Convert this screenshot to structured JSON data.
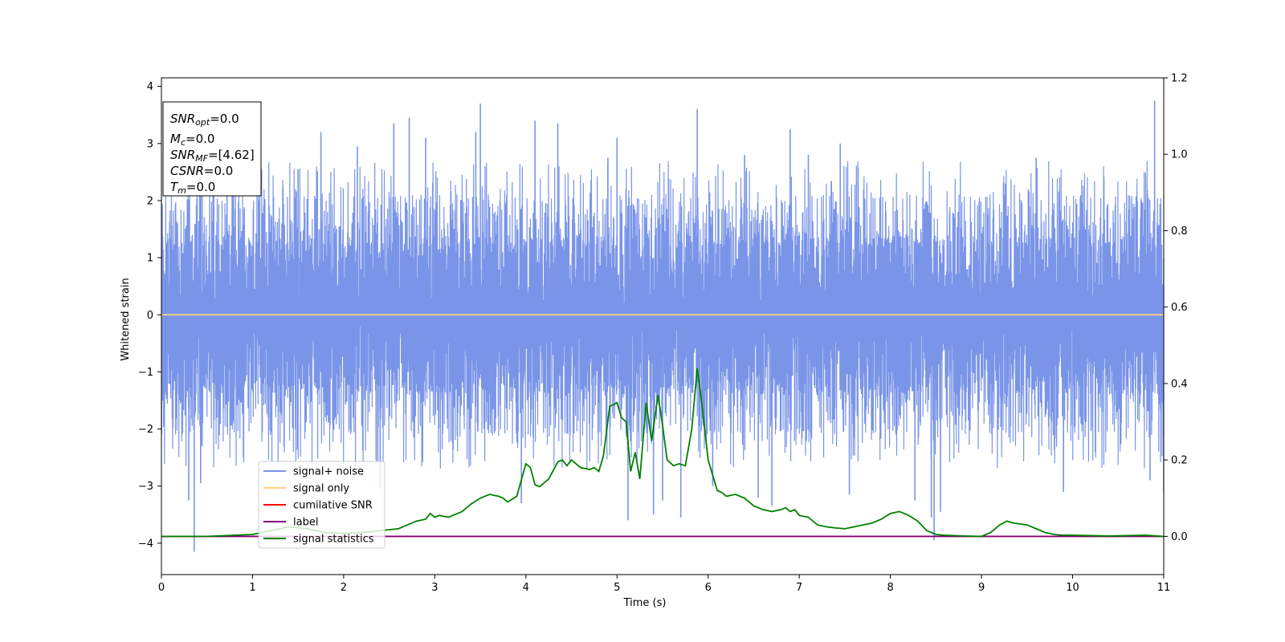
{
  "chart_data": {
    "type": "line",
    "xlabel": "Time (s)",
    "ylabel": "Whitened strain",
    "xlim": [
      0,
      11
    ],
    "ylim": [
      -4.55,
      4.15
    ],
    "y2lim": [
      -0.1,
      1.2
    ],
    "xticks": [
      "0",
      "1",
      "2",
      "3",
      "4",
      "5",
      "6",
      "7",
      "8",
      "9",
      "10",
      "11"
    ],
    "yticks": [
      "−4",
      "−3",
      "−2",
      "−1",
      "0",
      "1",
      "2",
      "3",
      "4"
    ],
    "y2ticks": [
      "0.0",
      "0.2",
      "0.4",
      "0.6",
      "0.8",
      "1.0",
      "1.2"
    ],
    "info_box": [
      {
        "base": "SNR",
        "sub": "opt",
        "value": "=0.0"
      },
      {
        "base": "M",
        "sub": "c",
        "value": "=0.0"
      },
      {
        "base": "SNR",
        "sub": "MF",
        "value": "=[4.62]"
      },
      {
        "base": "CSNR",
        "sub": "",
        "value": "=0.0"
      },
      {
        "base": "T",
        "sub": "m",
        "value": "=0.0"
      }
    ],
    "legend": {
      "placement": "lower-left",
      "entries": [
        {
          "label": "signal+ noise",
          "color": "#7a95e8"
        },
        {
          "label": "signal only",
          "color": "#ffd27f"
        },
        {
          "label": "cumilative SNR",
          "color": "#ff0000"
        },
        {
          "label": "label",
          "color": "#800080"
        },
        {
          "label": "signal statistics",
          "color": "#008000"
        }
      ]
    },
    "series": [
      {
        "name": "signal+ noise",
        "axis": "left",
        "color": "#7a95e8",
        "description_values": {
          "band_pos": [
            1.2,
            2.6
          ],
          "band_neg": [
            -1.2,
            -2.6
          ]
        },
        "spikes": [
          {
            "x": 0.36,
            "y": -4.15
          },
          {
            "x": 0.3,
            "y": -3.25
          },
          {
            "x": 0.43,
            "y": -2.95
          },
          {
            "x": 1.5,
            "y": 2.55
          },
          {
            "x": 1.75,
            "y": 3.2
          },
          {
            "x": 2.15,
            "y": 2.95
          },
          {
            "x": 2.4,
            "y": -3.05
          },
          {
            "x": 2.55,
            "y": 3.35
          },
          {
            "x": 2.72,
            "y": 3.45
          },
          {
            "x": 3.45,
            "y": 3.2
          },
          {
            "x": 3.5,
            "y": 3.7
          },
          {
            "x": 4.1,
            "y": 3.4
          },
          {
            "x": 4.35,
            "y": 3.35
          },
          {
            "x": 4.9,
            "y": 2.75
          },
          {
            "x": 5.0,
            "y": 3.1
          },
          {
            "x": 5.12,
            "y": -3.6
          },
          {
            "x": 5.4,
            "y": -3.5
          },
          {
            "x": 5.5,
            "y": -3.25
          },
          {
            "x": 5.88,
            "y": 3.6
          },
          {
            "x": 5.7,
            "y": -3.55
          },
          {
            "x": 6.05,
            "y": -3.0
          },
          {
            "x": 6.4,
            "y": 2.8
          },
          {
            "x": 6.55,
            "y": -3.2
          },
          {
            "x": 6.7,
            "y": -3.35
          },
          {
            "x": 6.9,
            "y": 3.25
          },
          {
            "x": 7.1,
            "y": 2.8
          },
          {
            "x": 7.45,
            "y": 3.0
          },
          {
            "x": 7.55,
            "y": -3.15
          },
          {
            "x": 8.27,
            "y": -3.25
          },
          {
            "x": 8.45,
            "y": -3.55
          },
          {
            "x": 8.48,
            "y": -3.95
          },
          {
            "x": 8.55,
            "y": -3.45
          },
          {
            "x": 9.6,
            "y": 2.75
          },
          {
            "x": 9.9,
            "y": -3.1
          },
          {
            "x": 10.9,
            "y": 3.75
          },
          {
            "x": 10.85,
            "y": -2.9
          },
          {
            "x": 11.0,
            "y": -3.1
          },
          {
            "x": 0.72,
            "y": 3.05
          },
          {
            "x": 3.95,
            "y": -3.3
          },
          {
            "x": 2.9,
            "y": 3.1
          }
        ]
      },
      {
        "name": "signal only",
        "axis": "left",
        "color": "#ffd27f",
        "x": [
          0,
          11
        ],
        "y": [
          0,
          0
        ]
      },
      {
        "name": "cumilative SNR",
        "axis": "right",
        "color": "#ff0000",
        "x": [
          0,
          11
        ],
        "y": [
          0,
          0
        ]
      },
      {
        "name": "label",
        "axis": "right",
        "color": "#800080",
        "x": [
          0,
          11
        ],
        "y": [
          0,
          0
        ]
      },
      {
        "name": "signal statistics",
        "axis": "right",
        "color": "#008000",
        "x": [
          0,
          0.5,
          1.0,
          1.2,
          1.4,
          1.6,
          1.8,
          2.0,
          2.2,
          2.4,
          2.6,
          2.7,
          2.8,
          2.9,
          2.95,
          3.0,
          3.05,
          3.15,
          3.25,
          3.3,
          3.4,
          3.5,
          3.6,
          3.7,
          3.75,
          3.8,
          3.9,
          4.0,
          4.05,
          4.1,
          4.15,
          4.25,
          4.35,
          4.4,
          4.45,
          4.5,
          4.6,
          4.7,
          4.75,
          4.8,
          4.85,
          4.92,
          5.0,
          5.05,
          5.1,
          5.15,
          5.2,
          5.25,
          5.32,
          5.38,
          5.45,
          5.5,
          5.55,
          5.62,
          5.68,
          5.75,
          5.82,
          5.88,
          5.93,
          6.0,
          6.1,
          6.15,
          6.2,
          6.3,
          6.4,
          6.5,
          6.6,
          6.7,
          6.8,
          6.85,
          6.9,
          6.95,
          7.0,
          7.1,
          7.2,
          7.3,
          7.4,
          7.5,
          7.6,
          7.7,
          7.8,
          7.9,
          8.0,
          8.1,
          8.2,
          8.3,
          8.4,
          8.5,
          8.6,
          8.8,
          9.0,
          9.1,
          9.2,
          9.28,
          9.35,
          9.5,
          9.6,
          9.7,
          9.8,
          9.9,
          10.0,
          10.2,
          10.4,
          10.6,
          10.8,
          11.0
        ],
        "y": [
          0.0,
          0.0,
          0.005,
          0.015,
          0.025,
          0.02,
          0.01,
          0.008,
          0.01,
          0.015,
          0.02,
          0.03,
          0.04,
          0.045,
          0.06,
          0.05,
          0.055,
          0.05,
          0.06,
          0.065,
          0.085,
          0.1,
          0.11,
          0.105,
          0.1,
          0.09,
          0.105,
          0.19,
          0.18,
          0.135,
          0.13,
          0.15,
          0.195,
          0.2,
          0.185,
          0.2,
          0.18,
          0.175,
          0.18,
          0.17,
          0.21,
          0.34,
          0.35,
          0.31,
          0.3,
          0.17,
          0.22,
          0.15,
          0.35,
          0.25,
          0.37,
          0.29,
          0.2,
          0.185,
          0.19,
          0.185,
          0.28,
          0.44,
          0.35,
          0.2,
          0.12,
          0.115,
          0.105,
          0.11,
          0.1,
          0.08,
          0.07,
          0.065,
          0.07,
          0.075,
          0.065,
          0.07,
          0.055,
          0.05,
          0.03,
          0.025,
          0.022,
          0.02,
          0.025,
          0.03,
          0.035,
          0.045,
          0.06,
          0.065,
          0.055,
          0.04,
          0.015,
          0.005,
          0.003,
          0.001,
          0.0,
          0.01,
          0.03,
          0.04,
          0.035,
          0.03,
          0.02,
          0.01,
          0.005,
          0.003,
          0.003,
          0.002,
          0.001,
          0.002,
          0.003,
          0.0
        ]
      }
    ]
  }
}
